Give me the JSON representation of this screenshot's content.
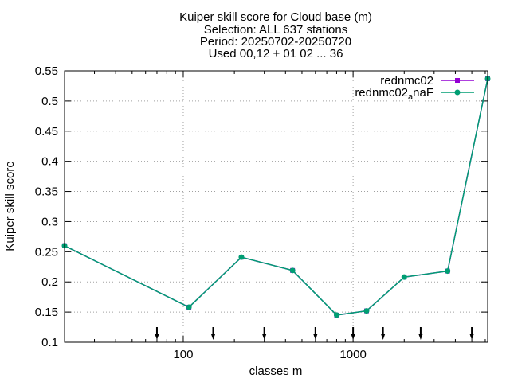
{
  "chart_data": {
    "type": "line",
    "title_lines": [
      "Kuiper skill score  for Cloud base (m)",
      "Selection: ALL    637 stations",
      "Period: 20250702-20250720",
      "Used 00,12 + 01 02 ... 36"
    ],
    "xlabel": "classes m",
    "ylabel": "Kuiper skill score",
    "xscale": "log",
    "xlim": [
      20,
      6200
    ],
    "ylim": [
      0.1,
      0.55
    ],
    "x_ticks": [
      100,
      1000
    ],
    "x_tick_labels": [
      "100",
      "1000"
    ],
    "y_ticks": [
      0.1,
      0.15,
      0.2,
      0.25,
      0.3,
      0.35,
      0.4,
      0.45,
      0.5,
      0.55
    ],
    "y_tick_labels": [
      "0.1",
      "0.15",
      "0.2",
      "0.25",
      "0.3",
      "0.35",
      "0.4",
      "0.45",
      "0.5",
      "0.55"
    ],
    "grid": true,
    "legend_position": "top-right",
    "series": [
      {
        "name": "rednmc02",
        "name_base": "rednmc02",
        "name_sub": "",
        "name_tail": "",
        "color": "#9400d3",
        "x": [
          20,
          108,
          220,
          440,
          800,
          1200,
          2000,
          3600,
          6200
        ],
        "values": [
          0.26,
          0.158,
          0.241,
          0.219,
          0.145,
          0.152,
          0.208,
          0.218,
          0.537
        ]
      },
      {
        "name": "rednmc02_anaF",
        "name_base": "rednmc02",
        "name_sub": "a",
        "name_tail": "naF",
        "color": "#009e73",
        "x": [
          20,
          108,
          220,
          440,
          800,
          1200,
          2000,
          3600,
          6200
        ],
        "values": [
          0.26,
          0.158,
          0.241,
          0.219,
          0.145,
          0.152,
          0.208,
          0.218,
          0.537
        ]
      }
    ],
    "threshold_arrows_x": [
      70,
      150,
      300,
      600,
      1000,
      1500,
      2500,
      5000
    ]
  }
}
